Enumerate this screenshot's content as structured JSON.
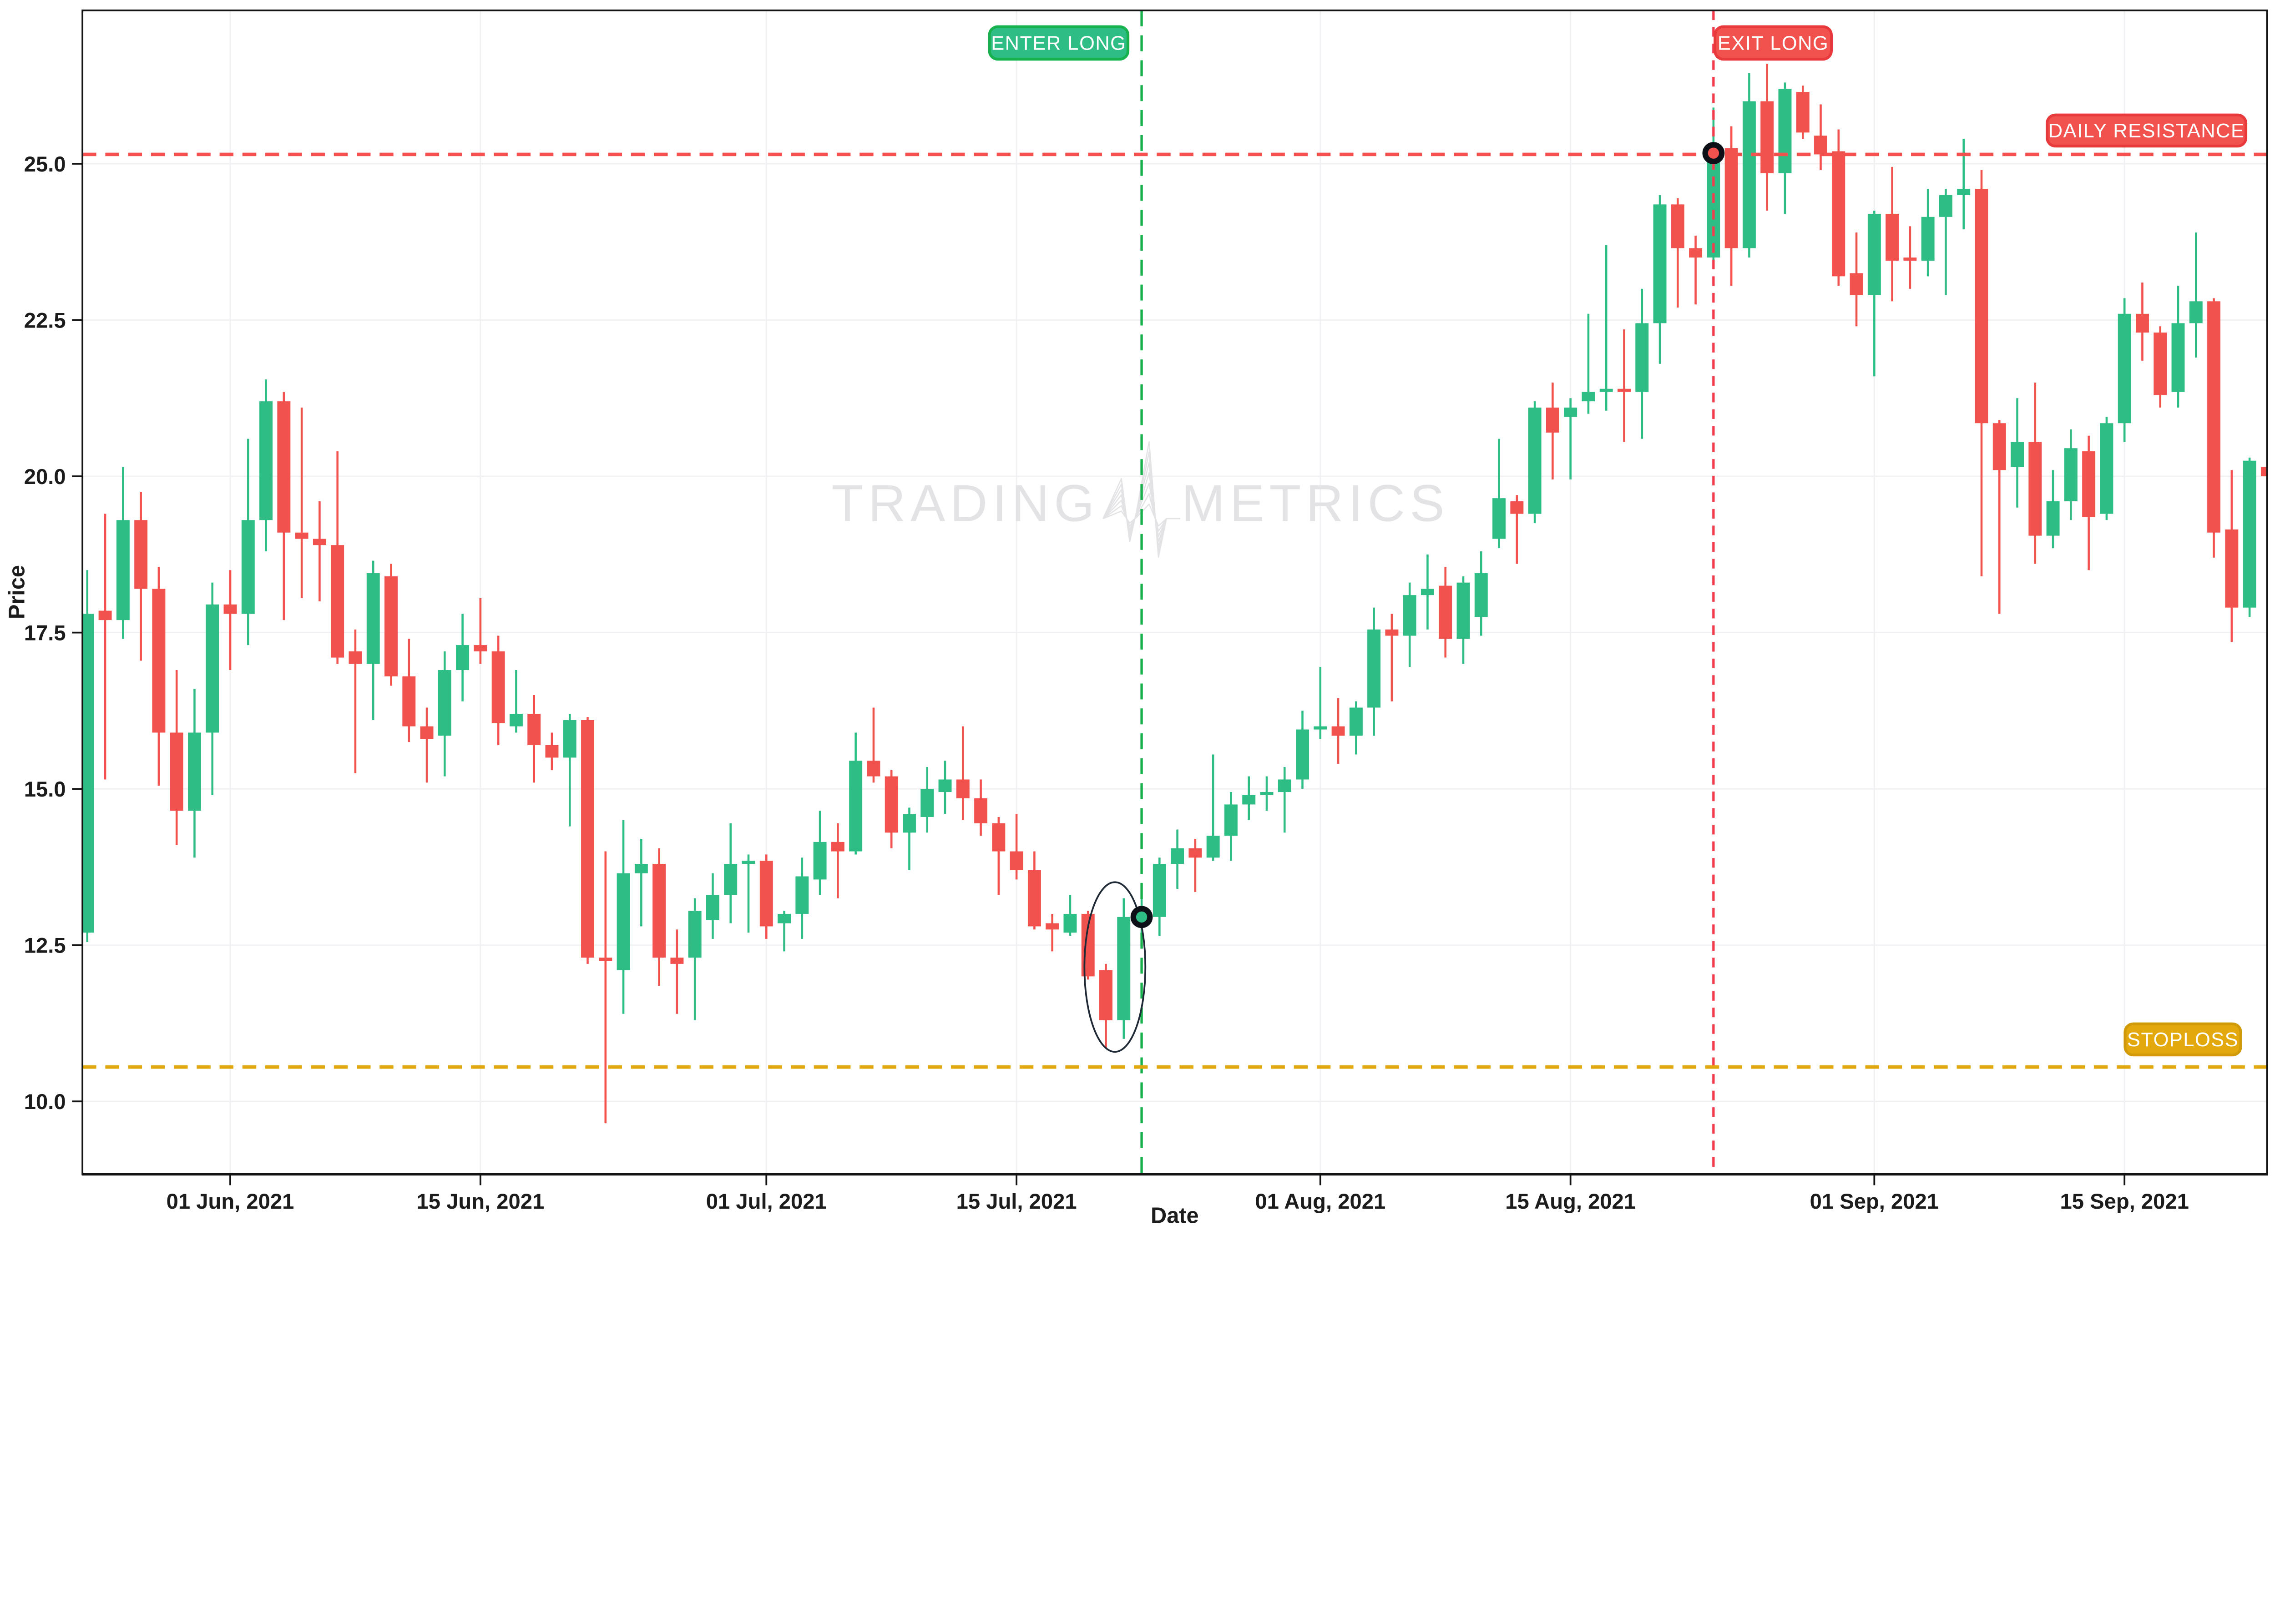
{
  "chart_data": {
    "type": "candlestick",
    "xlabel": "Date",
    "ylabel": "Price",
    "grid": true,
    "ylim": [
      8.8,
      27.4
    ],
    "series_start_date": "2021-05-24",
    "y_ticks": [
      {
        "label": "25.0",
        "value": 25.0
      },
      {
        "label": "22.5",
        "value": 22.5
      },
      {
        "label": "20.0",
        "value": 20.0
      },
      {
        "label": "17.5",
        "value": 17.5
      },
      {
        "label": "15.0",
        "value": 15.0
      },
      {
        "label": "12.5",
        "value": 12.5
      },
      {
        "label": "10.0",
        "value": 10.0
      }
    ],
    "x_ticks": [
      {
        "label": "01 Jun, 2021",
        "date": "2021-06-01"
      },
      {
        "label": "15 Jun, 2021",
        "date": "2021-06-15"
      },
      {
        "label": "01 Jul, 2021",
        "date": "2021-07-01"
      },
      {
        "label": "15 Jul, 2021",
        "date": "2021-07-15"
      },
      {
        "label": "01 Aug, 2021",
        "date": "2021-08-01"
      },
      {
        "label": "15 Aug, 2021",
        "date": "2021-08-15"
      },
      {
        "label": "01 Sep, 2021",
        "date": "2021-09-01"
      },
      {
        "label": "15 Sep, 2021",
        "date": "2021-09-15"
      }
    ],
    "candles": [
      [
        "2021-05-24",
        12.7,
        18.5,
        12.55,
        17.8
      ],
      [
        "2021-05-25",
        17.85,
        19.4,
        15.15,
        17.7
      ],
      [
        "2021-05-26",
        17.7,
        20.15,
        17.4,
        19.3
      ],
      [
        "2021-05-27",
        19.3,
        19.75,
        17.05,
        18.2
      ],
      [
        "2021-05-28",
        18.2,
        18.55,
        15.05,
        15.9
      ],
      [
        "2021-05-29",
        15.9,
        16.9,
        14.1,
        14.65
      ],
      [
        "2021-05-30",
        14.65,
        16.6,
        13.9,
        15.9
      ],
      [
        "2021-05-31",
        15.9,
        18.3,
        14.9,
        17.95
      ],
      [
        "2021-06-01",
        17.95,
        18.5,
        16.9,
        17.8
      ],
      [
        "2021-06-02",
        17.8,
        20.6,
        17.3,
        19.3
      ],
      [
        "2021-06-03",
        19.3,
        21.55,
        18.8,
        21.2
      ],
      [
        "2021-06-04",
        21.2,
        21.35,
        17.7,
        19.1
      ],
      [
        "2021-06-05",
        19.1,
        21.1,
        18.05,
        19.0
      ],
      [
        "2021-06-06",
        19.0,
        19.6,
        18.0,
        18.9
      ],
      [
        "2021-06-07",
        18.9,
        20.4,
        17.0,
        17.1
      ],
      [
        "2021-06-08",
        17.2,
        17.55,
        15.25,
        17.0
      ],
      [
        "2021-06-09",
        17.0,
        18.65,
        16.1,
        18.45
      ],
      [
        "2021-06-10",
        18.4,
        18.6,
        16.65,
        16.8
      ],
      [
        "2021-06-11",
        16.8,
        17.4,
        15.75,
        16.0
      ],
      [
        "2021-06-12",
        16.0,
        16.3,
        15.1,
        15.8
      ],
      [
        "2021-06-13",
        15.85,
        17.2,
        15.2,
        16.9
      ],
      [
        "2021-06-14",
        16.9,
        17.8,
        16.4,
        17.3
      ],
      [
        "2021-06-15",
        17.3,
        18.05,
        17.0,
        17.2
      ],
      [
        "2021-06-16",
        17.2,
        17.45,
        15.7,
        16.05
      ],
      [
        "2021-06-17",
        16.0,
        16.9,
        15.9,
        16.2
      ],
      [
        "2021-06-18",
        16.2,
        16.5,
        15.1,
        15.7
      ],
      [
        "2021-06-19",
        15.7,
        15.9,
        15.3,
        15.5
      ],
      [
        "2021-06-20",
        15.5,
        16.2,
        14.4,
        16.1
      ],
      [
        "2021-06-21",
        16.1,
        16.15,
        12.2,
        12.3
      ],
      [
        "2021-06-22",
        12.3,
        14.0,
        9.65,
        12.25
      ],
      [
        "2021-06-23",
        12.1,
        14.5,
        11.4,
        13.65
      ],
      [
        "2021-06-24",
        13.65,
        14.2,
        12.8,
        13.8
      ],
      [
        "2021-06-25",
        13.8,
        14.05,
        11.85,
        12.3
      ],
      [
        "2021-06-26",
        12.3,
        12.75,
        11.4,
        12.2
      ],
      [
        "2021-06-27",
        12.3,
        13.25,
        11.3,
        13.05
      ],
      [
        "2021-06-28",
        12.9,
        13.65,
        12.6,
        13.3
      ],
      [
        "2021-06-29",
        13.3,
        14.45,
        12.85,
        13.8
      ],
      [
        "2021-06-30",
        13.8,
        13.95,
        12.7,
        13.85
      ],
      [
        "2021-07-01",
        13.85,
        13.95,
        12.6,
        12.8
      ],
      [
        "2021-07-02",
        12.85,
        13.05,
        12.4,
        13.0
      ],
      [
        "2021-07-03",
        13.0,
        13.9,
        12.6,
        13.6
      ],
      [
        "2021-07-04",
        13.55,
        14.65,
        13.3,
        14.15
      ],
      [
        "2021-07-05",
        14.15,
        14.45,
        13.25,
        14.0
      ],
      [
        "2021-07-06",
        14.0,
        15.9,
        13.95,
        15.45
      ],
      [
        "2021-07-07",
        15.45,
        16.3,
        15.1,
        15.2
      ],
      [
        "2021-07-08",
        15.2,
        15.3,
        14.05,
        14.3
      ],
      [
        "2021-07-09",
        14.3,
        14.7,
        13.7,
        14.6
      ],
      [
        "2021-07-10",
        14.55,
        15.35,
        14.3,
        15.0
      ],
      [
        "2021-07-11",
        14.95,
        15.45,
        14.6,
        15.15
      ],
      [
        "2021-07-12",
        15.15,
        16.0,
        14.5,
        14.85
      ],
      [
        "2021-07-13",
        14.85,
        15.15,
        14.25,
        14.45
      ],
      [
        "2021-07-14",
        14.45,
        14.55,
        13.3,
        14.0
      ],
      [
        "2021-07-15",
        14.0,
        14.6,
        13.55,
        13.7
      ],
      [
        "2021-07-16",
        13.7,
        14.0,
        12.75,
        12.8
      ],
      [
        "2021-07-17",
        12.85,
        13.0,
        12.4,
        12.75
      ],
      [
        "2021-07-18",
        12.7,
        13.3,
        12.65,
        13.0
      ],
      [
        "2021-07-19",
        13.0,
        13.05,
        11.95,
        12.0
      ],
      [
        "2021-07-20",
        12.1,
        12.2,
        10.85,
        11.3
      ],
      [
        "2021-07-21",
        11.3,
        13.25,
        11.0,
        12.95
      ],
      [
        "2021-07-22",
        12.9,
        13.3,
        12.6,
        13.0
      ],
      [
        "2021-07-23",
        12.95,
        13.9,
        12.65,
        13.8
      ],
      [
        "2021-07-24",
        13.8,
        14.35,
        13.4,
        14.05
      ],
      [
        "2021-07-25",
        14.05,
        14.2,
        13.35,
        13.9
      ],
      [
        "2021-07-26",
        13.9,
        15.55,
        13.85,
        14.25
      ],
      [
        "2021-07-27",
        14.25,
        14.95,
        13.85,
        14.75
      ],
      [
        "2021-07-28",
        14.75,
        15.2,
        14.5,
        14.9
      ],
      [
        "2021-07-29",
        14.9,
        15.2,
        14.65,
        14.95
      ],
      [
        "2021-07-30",
        14.95,
        15.35,
        14.3,
        15.15
      ],
      [
        "2021-07-31",
        15.15,
        16.25,
        15.0,
        15.95
      ],
      [
        "2021-08-01",
        15.95,
        16.95,
        15.8,
        16.0
      ],
      [
        "2021-08-02",
        16.0,
        16.45,
        15.4,
        15.85
      ],
      [
        "2021-08-03",
        15.85,
        16.4,
        15.55,
        16.3
      ],
      [
        "2021-08-04",
        16.3,
        17.9,
        15.85,
        17.55
      ],
      [
        "2021-08-05",
        17.55,
        17.8,
        16.4,
        17.45
      ],
      [
        "2021-08-06",
        17.45,
        18.3,
        16.95,
        18.1
      ],
      [
        "2021-08-07",
        18.1,
        18.75,
        17.55,
        18.2
      ],
      [
        "2021-08-08",
        18.25,
        18.55,
        17.1,
        17.4
      ],
      [
        "2021-08-09",
        17.4,
        18.4,
        17.0,
        18.3
      ],
      [
        "2021-08-10",
        17.75,
        18.8,
        17.45,
        18.45
      ],
      [
        "2021-08-11",
        19.0,
        20.6,
        18.85,
        19.65
      ],
      [
        "2021-08-12",
        19.6,
        19.7,
        18.6,
        19.4
      ],
      [
        "2021-08-13",
        19.4,
        21.2,
        19.25,
        21.1
      ],
      [
        "2021-08-14",
        21.1,
        21.5,
        19.95,
        20.7
      ],
      [
        "2021-08-15",
        20.95,
        21.25,
        19.95,
        21.1
      ],
      [
        "2021-08-16",
        21.2,
        22.6,
        21.0,
        21.35
      ],
      [
        "2021-08-17",
        21.35,
        23.7,
        21.05,
        21.4
      ],
      [
        "2021-08-18",
        21.4,
        22.35,
        20.55,
        21.35
      ],
      [
        "2021-08-19",
        21.35,
        23.0,
        20.6,
        22.45
      ],
      [
        "2021-08-20",
        22.45,
        24.5,
        21.8,
        24.35
      ],
      [
        "2021-08-21",
        24.35,
        24.45,
        22.7,
        23.65
      ],
      [
        "2021-08-22",
        23.65,
        23.85,
        22.75,
        23.5
      ],
      [
        "2021-08-23",
        23.5,
        25.9,
        23.4,
        25.05
      ],
      [
        "2021-08-24",
        25.25,
        25.6,
        23.05,
        23.65
      ],
      [
        "2021-08-25",
        23.65,
        26.45,
        23.5,
        26.0
      ],
      [
        "2021-08-26",
        26.0,
        26.6,
        24.25,
        24.85
      ],
      [
        "2021-08-27",
        24.85,
        26.3,
        24.2,
        26.2
      ],
      [
        "2021-08-28",
        26.15,
        26.25,
        25.4,
        25.5
      ],
      [
        "2021-08-29",
        25.45,
        25.95,
        24.9,
        25.15
      ],
      [
        "2021-08-30",
        25.2,
        25.55,
        23.05,
        23.2
      ],
      [
        "2021-08-31",
        23.25,
        23.9,
        22.4,
        22.9
      ],
      [
        "2021-09-01",
        22.9,
        24.25,
        21.6,
        24.2
      ],
      [
        "2021-09-02",
        24.2,
        24.95,
        22.8,
        23.45
      ],
      [
        "2021-09-03",
        23.5,
        24.0,
        23.0,
        23.45
      ],
      [
        "2021-09-04",
        23.45,
        24.6,
        23.2,
        24.15
      ],
      [
        "2021-09-05",
        24.15,
        24.6,
        22.9,
        24.5
      ],
      [
        "2021-09-06",
        24.5,
        25.4,
        23.95,
        24.6
      ],
      [
        "2021-09-07",
        24.6,
        24.9,
        18.4,
        20.85
      ],
      [
        "2021-09-08",
        20.85,
        20.9,
        17.8,
        20.1
      ],
      [
        "2021-09-09",
        20.15,
        21.25,
        19.5,
        20.55
      ],
      [
        "2021-09-10",
        20.55,
        21.5,
        18.6,
        19.05
      ],
      [
        "2021-09-11",
        19.05,
        20.1,
        18.85,
        19.6
      ],
      [
        "2021-09-12",
        19.6,
        20.75,
        19.3,
        20.45
      ],
      [
        "2021-09-13",
        20.4,
        20.65,
        18.5,
        19.35
      ],
      [
        "2021-09-14",
        19.4,
        20.95,
        19.3,
        20.85
      ],
      [
        "2021-09-15",
        20.85,
        22.85,
        20.55,
        22.6
      ],
      [
        "2021-09-16",
        22.6,
        23.1,
        21.85,
        22.3
      ],
      [
        "2021-09-17",
        22.3,
        22.4,
        21.1,
        21.3
      ],
      [
        "2021-09-18",
        21.35,
        23.05,
        21.1,
        22.45
      ],
      [
        "2021-09-19",
        22.45,
        23.9,
        21.9,
        22.8
      ],
      [
        "2021-09-20",
        22.8,
        22.85,
        18.7,
        19.1
      ],
      [
        "2021-09-21",
        19.15,
        20.1,
        17.35,
        17.9
      ],
      [
        "2021-09-22",
        17.9,
        20.3,
        17.75,
        20.25
      ],
      [
        "2021-09-23",
        20.15,
        20.6,
        19.55,
        20.0
      ]
    ],
    "annotations": {
      "enter_long": {
        "label": "ENTER LONG",
        "date": "2021-07-22",
        "marker_price": 12.95
      },
      "exit_long": {
        "label": "EXIT LONG",
        "date": "2021-08-23",
        "marker_price": 25.17
      },
      "daily_resistance": {
        "label": "DAILY RESISTANCE",
        "price": 25.15
      },
      "stoploss": {
        "label": "STOPLOSS",
        "price": 10.55
      },
      "highlight_ellipse": {
        "date_center": "2021-07-20",
        "price_center": 12.15,
        "price_top": 13.45,
        "price_bottom": 10.8
      }
    },
    "watermark": {
      "left": "TRADING",
      "right": "METRICS"
    },
    "colors": {
      "bull": "#2ebd85",
      "bear": "#f2524e",
      "enter_line": "#17b24e",
      "exit_line": "#f23d4c",
      "resistance": "#f2524e",
      "stoploss": "#e2a80d",
      "stoploss_border": "#d09a08",
      "chip_red_border": "#e8393d",
      "marker_ring": "#0d1117",
      "watermark": "#e3e3e6",
      "grid": "#f1f1f4",
      "axis": "#141414"
    }
  }
}
